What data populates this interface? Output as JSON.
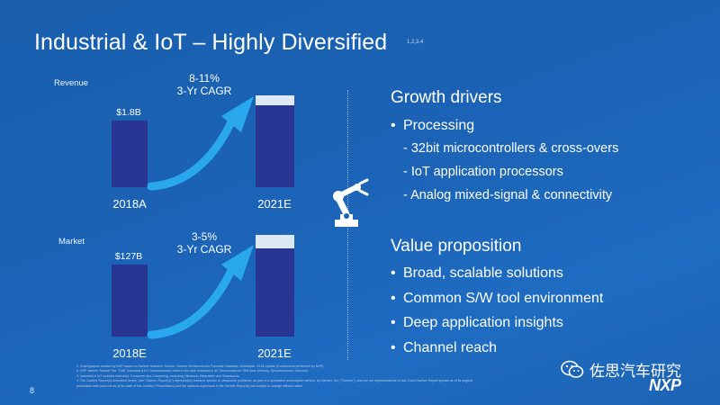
{
  "title": "Industrial & IoT – Highly Diversified",
  "title_footnote_refs": "1,2,3,4",
  "revenue_chart": {
    "label": "Revenue",
    "bar1_value": "$1.8B",
    "bar1_x": "2018A",
    "bar2_x": "2021E",
    "cagr_line1": "8-11%",
    "cagr_line2": "3-Yr CAGR"
  },
  "market_chart": {
    "label": "Market",
    "bar1_value": "$127B",
    "bar1_x": "2018E",
    "bar2_x": "2021E",
    "cagr_line1": "3-5%",
    "cagr_line2": "3-Yr CAGR"
  },
  "growth_drivers": {
    "heading": "Growth drivers",
    "bullet": "Processing",
    "sub_items": [
      "32bit microcontrollers & cross-overs",
      "IoT application processors",
      "Analog mixed-signal & connectivity"
    ]
  },
  "value_proposition": {
    "heading": "Value proposition",
    "items": [
      "Broad, scalable solutions",
      "Common S/W tool environment",
      "Deep application insights",
      "Channel reach"
    ]
  },
  "footnotes": [
    "1.   Chart/graphic created by NXP based on Gartner research. Source: Gartner Semiconductor Forecast Database, Worldwide, 2018 Update (Conclusions performed by NXP).",
    "2.   NXP defines \"Market\" the \"TAM\" Industrial & IoT Semiconductor which is the total Industrial & IoT Semiconductor TAM (less Memory, Optoelectronics, Discrete).",
    "3.   Industrial & IoT includes Industrial, Consumer and Computing, excluding Ultrasonic Wearables and Smartcards.",
    "4.   The Gartner Report(s) described herein, (the \"Gartner Report(s)\") represent(s) research opinion or viewpoints published, as part of a syndicated subscription service, by Gartner, Inc. (\"Gartner\"), and are not representations of fact. Each Gartner Report speaks as of its original",
    "     publication date (and not as of the date of this Investor Presentation) and the opinions expressed in the Gartner Report(s) are subject to change without notice."
  ],
  "page_number": "8",
  "watermark": "佐思汽车研究",
  "logo": "NXP",
  "colors": {
    "background": "#1b63b6",
    "bar": "#283593",
    "bar_cap": "#dde8f5",
    "text": "#ffffff"
  }
}
